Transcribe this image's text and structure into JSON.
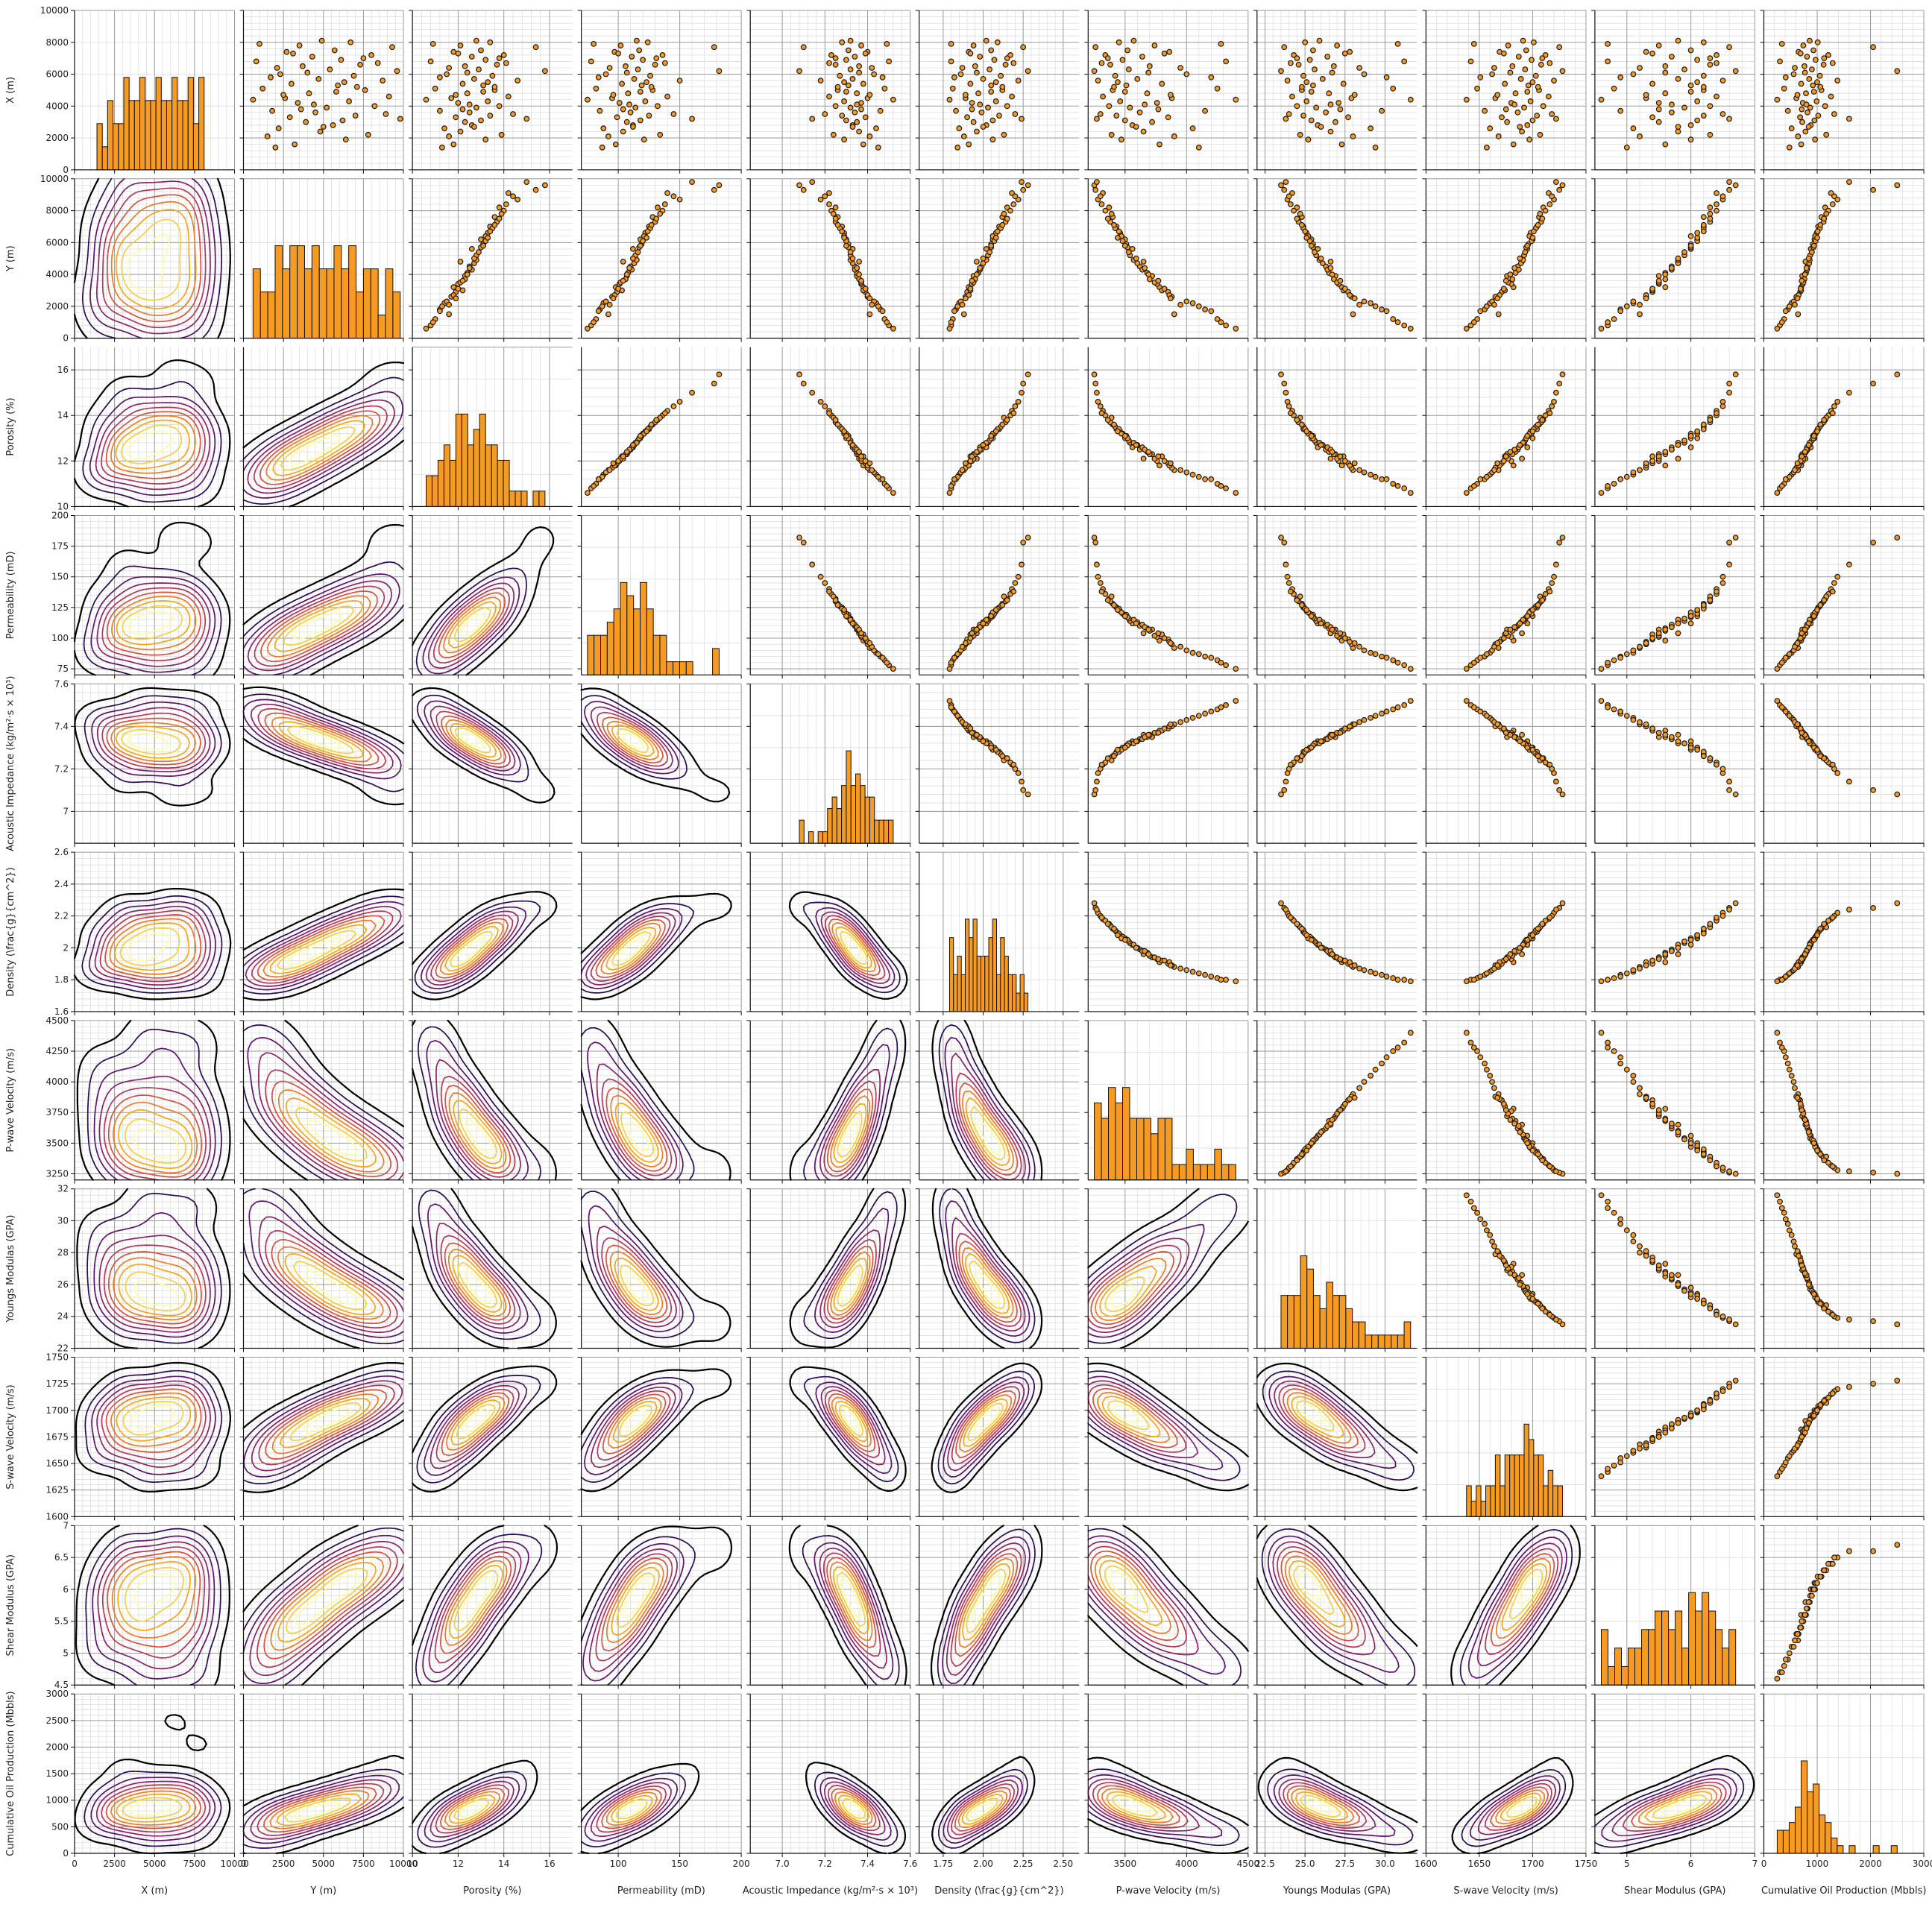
{
  "colors": {
    "histogram": "#f59a23",
    "scatter_fill": "#f59a23",
    "marker_edge": "#1a1a1a",
    "kde_colormap": [
      "#000004",
      "#2a0a55",
      "#5c126e",
      "#8a226a",
      "#b5365b",
      "#d8513f",
      "#ef7a24",
      "#f9a50f",
      "#f7d03c",
      "#fcffa4"
    ],
    "grid_major": "#9a9a9a",
    "grid_minor": "#dedede"
  },
  "chart_data": {
    "type": "pairplot",
    "lower_triangle": "kde-contour",
    "diagonal": "histogram",
    "upper_triangle": "scatter",
    "grid": true,
    "minor_grid": true,
    "variables": [
      {
        "key": "x",
        "label": "X (m)",
        "lim": [
          0,
          10000
        ],
        "ticks": [
          0,
          2000,
          4000,
          6000,
          8000,
          10000
        ],
        "xticks": [
          0,
          2500,
          5000,
          7500,
          10000
        ],
        "xtick_labels": [
          "0",
          "2500",
          "5000",
          "7500",
          "10000"
        ]
      },
      {
        "key": "y",
        "label": "Y (m)",
        "lim": [
          0,
          10000
        ],
        "ticks": [
          0,
          2000,
          4000,
          6000,
          8000,
          10000
        ],
        "xticks": [
          0,
          2500,
          5000,
          7500,
          10000
        ],
        "xtick_labels": [
          "0",
          "2500",
          "5000",
          "7500",
          "10000"
        ]
      },
      {
        "key": "por",
        "label": "Porosity (%)",
        "lim": [
          10,
          17
        ],
        "ticks": [
          10,
          12,
          14,
          16
        ],
        "xticks": [
          10,
          12,
          14,
          16
        ],
        "xtick_labels": [
          "10",
          "12",
          "14",
          "16"
        ]
      },
      {
        "key": "perm",
        "label": "Permeability (mD)",
        "lim": [
          70,
          200
        ],
        "ticks": [
          75,
          100,
          125,
          150,
          175,
          200
        ],
        "xticks": [
          100,
          150,
          200
        ],
        "xtick_labels": [
          "100",
          "150",
          "200"
        ]
      },
      {
        "key": "ai",
        "label": "Acoustic Impedance (kg/m²·s × 10³)",
        "lim": [
          6.85,
          7.6
        ],
        "ticks": [
          7.0,
          7.2,
          7.4,
          7.6
        ],
        "xticks": [
          7.0,
          7.2,
          7.4,
          7.6
        ],
        "xtick_labels": [
          "7.0",
          "7.2",
          "7.4",
          "7.6"
        ]
      },
      {
        "key": "den",
        "label": "Density (\\frac{g}{cm^2})",
        "lim": [
          1.6,
          2.6
        ],
        "ticks": [
          1.6,
          1.8,
          2.0,
          2.2,
          2.4,
          2.6
        ],
        "xticks": [
          1.75,
          2.0,
          2.25,
          2.5
        ],
        "xtick_labels": [
          "1.75",
          "2.00",
          "2.25",
          "2.50"
        ]
      },
      {
        "key": "pv",
        "label": "P-wave Velocity (m/s)",
        "lim": [
          3200,
          4500
        ],
        "ticks": [
          3250,
          3500,
          3750,
          4000,
          4250,
          4500
        ],
        "xticks": [
          3500,
          4000,
          4500
        ],
        "xtick_labels": [
          "3500",
          "4000",
          "4500"
        ]
      },
      {
        "key": "ym",
        "label": "Youngs Modulas (GPA)",
        "lim": [
          22,
          32
        ],
        "ticks": [
          22,
          24,
          26,
          28,
          30,
          32
        ],
        "xticks": [
          22.5,
          25.0,
          27.5,
          30.0
        ],
        "xtick_labels": [
          "22.5",
          "25.0",
          "27.5",
          "30.0"
        ]
      },
      {
        "key": "sv",
        "label": "S-wave Velocity (m/s)",
        "lim": [
          1600,
          1750
        ],
        "ticks": [
          1600,
          1625,
          1650,
          1675,
          1700,
          1725,
          1750
        ],
        "xticks": [
          1600,
          1650,
          1700,
          1750
        ],
        "xtick_labels": [
          "1600",
          "1650",
          "1700",
          "1750"
        ]
      },
      {
        "key": "sm",
        "label": "Shear Modulus (GPA)",
        "lim": [
          4.5,
          7.0
        ],
        "ticks": [
          4.5,
          5.0,
          5.5,
          6.0,
          6.5,
          7.0
        ],
        "xticks": [
          5,
          6,
          7
        ],
        "xtick_labels": [
          "5",
          "6",
          "7"
        ]
      },
      {
        "key": "prod",
        "label": "Cumulative Oil Production (Mbbls)",
        "lim": [
          0,
          3000
        ],
        "ticks": [
          0,
          500,
          1000,
          1500,
          2000,
          2500,
          3000
        ],
        "xticks": [
          0,
          1000,
          2000,
          3000
        ],
        "xtick_labels": [
          "0",
          "1000",
          "2000",
          "3000"
        ]
      }
    ],
    "rows": [
      {
        "x": 1600,
        "y": 3200,
        "por": 11.8,
        "perm": 98,
        "ai": 7.38,
        "den": 1.91,
        "pv": 3780,
        "ym": 27.3,
        "sv": 1682,
        "sm": 5.6,
        "prod": 700
      },
      {
        "x": 2100,
        "y": 1500,
        "por": 11.6,
        "perm": 92,
        "ai": 7.41,
        "den": 1.88,
        "pv": 3900,
        "ym": 28.0,
        "sv": 1668,
        "sm": 5.2,
        "prod": 640
      },
      {
        "x": 2400,
        "y": 4800,
        "por": 12.1,
        "perm": 104,
        "ai": 7.36,
        "den": 1.96,
        "pv": 3650,
        "ym": 26.6,
        "sv": 1690,
        "sm": 5.8,
        "prod": 780
      },
      {
        "x": 2600,
        "y": 2200,
        "por": 11.4,
        "perm": 88,
        "ai": 7.44,
        "den": 1.85,
        "pv": 4050,
        "ym": 29.1,
        "sv": 1660,
        "sm": 5.1,
        "prod": 520
      },
      {
        "x": 2800,
        "y": 5600,
        "por": 12.6,
        "perm": 112,
        "ai": 7.33,
        "den": 2.02,
        "pv": 3560,
        "ym": 25.8,
        "sv": 1695,
        "sm": 6.0,
        "prod": 880
      },
      {
        "x": 3000,
        "y": 3900,
        "por": 12.3,
        "perm": 107,
        "ai": 7.35,
        "den": 1.94,
        "pv": 3720,
        "ym": 26.9,
        "sv": 1676,
        "sm": 5.5,
        "prod": 720
      },
      {
        "x": 3100,
        "y": 6200,
        "por": 13.0,
        "perm": 118,
        "ai": 7.3,
        "den": 2.06,
        "pv": 3500,
        "ym": 25.4,
        "sv": 1700,
        "sm": 6.1,
        "prod": 950
      },
      {
        "x": 3300,
        "y": 2900,
        "por": 11.9,
        "perm": 99,
        "ai": 7.39,
        "den": 1.9,
        "pv": 3850,
        "ym": 27.7,
        "sv": 1671,
        "sm": 5.4,
        "prod": 680
      },
      {
        "x": 3400,
        "y": 7000,
        "por": 13.4,
        "perm": 125,
        "ai": 7.28,
        "den": 2.1,
        "pv": 3430,
        "ym": 24.9,
        "sv": 1704,
        "sm": 6.2,
        "prod": 1020
      },
      {
        "x": 3600,
        "y": 4500,
        "por": 12.5,
        "perm": 110,
        "ai": 7.34,
        "den": 1.99,
        "pv": 3620,
        "ym": 26.3,
        "sv": 1686,
        "sm": 5.7,
        "prod": 820
      },
      {
        "x": 3700,
        "y": 1800,
        "por": 11.2,
        "perm": 85,
        "ai": 7.46,
        "den": 1.83,
        "pv": 4150,
        "ym": 29.8,
        "sv": 1655,
        "sm": 4.9,
        "prod": 450
      },
      {
        "x": 3900,
        "y": 5200,
        "por": 12.8,
        "perm": 114,
        "ai": 7.32,
        "den": 2.03,
        "pv": 3540,
        "ym": 25.7,
        "sv": 1692,
        "sm": 5.9,
        "prod": 870
      },
      {
        "x": 4000,
        "y": 8200,
        "por": 13.8,
        "perm": 132,
        "ai": 7.25,
        "den": 2.15,
        "pv": 3370,
        "ym": 24.5,
        "sv": 1710,
        "sm": 6.3,
        "prod": 1150
      },
      {
        "x": 4200,
        "y": 3400,
        "por": 12.0,
        "perm": 101,
        "ai": 7.37,
        "den": 1.93,
        "pv": 3760,
        "ym": 27.1,
        "sv": 1680,
        "sm": 5.5,
        "prod": 730
      },
      {
        "x": 4300,
        "y": 6600,
        "por": 13.3,
        "perm": 122,
        "ai": 7.29,
        "den": 2.08,
        "pv": 3460,
        "ym": 25.1,
        "sv": 1698,
        "sm": 6.1,
        "prod": 990
      },
      {
        "x": 4500,
        "y": 2600,
        "por": 11.7,
        "perm": 95,
        "ai": 7.4,
        "den": 1.89,
        "pv": 3880,
        "ym": 27.9,
        "sv": 1665,
        "sm": 5.3,
        "prod": 610
      },
      {
        "x": 4600,
        "y": 9100,
        "por": 14.2,
        "perm": 140,
        "ai": 7.22,
        "den": 2.18,
        "pv": 3320,
        "ym": 24.2,
        "sv": 1715,
        "sm": 6.4,
        "prod": 1260
      },
      {
        "x": 4800,
        "y": 4100,
        "por": 12.4,
        "perm": 108,
        "ai": 7.35,
        "den": 1.97,
        "pv": 3680,
        "ym": 26.5,
        "sv": 1684,
        "sm": 5.6,
        "prod": 790
      },
      {
        "x": 5000,
        "y": 7600,
        "por": 13.6,
        "perm": 128,
        "ai": 7.26,
        "den": 2.12,
        "pv": 3400,
        "ym": 24.8,
        "sv": 1706,
        "sm": 6.2,
        "prod": 1080
      },
      {
        "x": 5100,
        "y": 1200,
        "por": 11.0,
        "perm": 82,
        "ai": 7.48,
        "den": 1.81,
        "pv": 4250,
        "ym": 30.5,
        "sv": 1648,
        "sm": 4.8,
        "prod": 380
      },
      {
        "x": 5300,
        "y": 5900,
        "por": 13.1,
        "perm": 119,
        "ai": 7.31,
        "den": 2.05,
        "pv": 3510,
        "ym": 25.5,
        "sv": 1696,
        "sm": 6.0,
        "prod": 920
      },
      {
        "x": 5400,
        "y": 3000,
        "por": 12.2,
        "perm": 103,
        "ai": 7.38,
        "den": 1.92,
        "pv": 3800,
        "ym": 27.4,
        "sv": 1674,
        "sm": 5.4,
        "prod": 700
      },
      {
        "x": 5600,
        "y": 8700,
        "por": 14.6,
        "perm": 150,
        "ai": 7.18,
        "den": 2.22,
        "pv": 3280,
        "ym": 23.9,
        "sv": 1720,
        "sm": 6.5,
        "prod": 1380
      },
      {
        "x": 5700,
        "y": 4700,
        "por": 12.7,
        "perm": 113,
        "ai": 7.33,
        "den": 2.0,
        "pv": 3600,
        "ym": 26.1,
        "sv": 1689,
        "sm": 5.8,
        "prod": 850
      },
      {
        "x": 5900,
        "y": 6900,
        "por": 13.5,
        "perm": 126,
        "ai": 7.27,
        "den": 2.11,
        "pv": 3420,
        "ym": 24.9,
        "sv": 1703,
        "sm": 6.2,
        "prod": 1050
      },
      {
        "x": 6000,
        "y": 2300,
        "por": 11.5,
        "perm": 90,
        "ai": 7.43,
        "den": 1.86,
        "pv": 4000,
        "ym": 28.7,
        "sv": 1662,
        "sm": 5.1,
        "prod": 560
      },
      {
        "x": 6200,
        "y": 9600,
        "por": 15.8,
        "perm": 182,
        "ai": 7.08,
        "den": 2.28,
        "pv": 3250,
        "ym": 23.5,
        "sv": 1728,
        "sm": 6.7,
        "prod": 2500
      },
      {
        "x": 6300,
        "y": 5400,
        "por": 12.9,
        "perm": 116,
        "ai": 7.32,
        "den": 2.04,
        "pv": 3530,
        "ym": 25.6,
        "sv": 1693,
        "sm": 5.9,
        "prod": 900
      },
      {
        "x": 6500,
        "y": 3700,
        "por": 12.3,
        "perm": 106,
        "ai": 7.36,
        "den": 1.95,
        "pv": 3700,
        "ym": 26.8,
        "sv": 1681,
        "sm": 5.6,
        "prod": 760
      },
      {
        "x": 6600,
        "y": 7300,
        "por": 13.7,
        "perm": 130,
        "ai": 7.25,
        "den": 2.14,
        "pv": 3380,
        "ym": 24.6,
        "sv": 1708,
        "sm": 6.3,
        "prod": 1120
      },
      {
        "x": 6800,
        "y": 800,
        "por": 10.8,
        "perm": 78,
        "ai": 7.5,
        "den": 1.8,
        "pv": 4320,
        "ym": 31.2,
        "sv": 1642,
        "sm": 4.7,
        "prod": 300
      },
      {
        "x": 6900,
        "y": 6100,
        "por": 13.2,
        "perm": 120,
        "ai": 7.3,
        "den": 2.07,
        "pv": 3480,
        "ym": 25.3,
        "sv": 1699,
        "sm": 6.1,
        "prod": 970
      },
      {
        "x": 7100,
        "y": 4300,
        "por": 12.6,
        "perm": 111,
        "ai": 7.34,
        "den": 1.98,
        "pv": 3640,
        "ym": 26.4,
        "sv": 1687,
        "sm": 5.7,
        "prod": 810
      },
      {
        "x": 7200,
        "y": 8000,
        "por": 14.0,
        "perm": 136,
        "ai": 7.23,
        "den": 2.17,
        "pv": 3340,
        "ym": 24.3,
        "sv": 1712,
        "sm": 6.4,
        "prod": 1210
      },
      {
        "x": 7400,
        "y": 2700,
        "por": 11.8,
        "perm": 97,
        "ai": 7.4,
        "den": 1.91,
        "pv": 3860,
        "ym": 27.8,
        "sv": 1669,
        "sm": 5.3,
        "prod": 650
      },
      {
        "x": 7500,
        "y": 5700,
        "por": 13.0,
        "perm": 117,
        "ai": 7.31,
        "den": 2.05,
        "pv": 3520,
        "ym": 25.5,
        "sv": 1694,
        "sm": 6.0,
        "prod": 930
      },
      {
        "x": 7700,
        "y": 9300,
        "por": 15.4,
        "perm": 178,
        "ai": 7.1,
        "den": 2.25,
        "pv": 3260,
        "ym": 23.7,
        "sv": 1725,
        "sm": 6.6,
        "prod": 2050
      },
      {
        "x": 7800,
        "y": 3500,
        "por": 12.1,
        "perm": 102,
        "ai": 7.37,
        "den": 1.94,
        "pv": 3740,
        "ym": 27.0,
        "sv": 1677,
        "sm": 5.5,
        "prod": 740
      },
      {
        "x": 8000,
        "y": 6700,
        "por": 13.4,
        "perm": 124,
        "ai": 7.28,
        "den": 2.09,
        "pv": 3450,
        "ym": 25.0,
        "sv": 1701,
        "sm": 6.2,
        "prod": 1010
      },
      {
        "x": 8100,
        "y": 4900,
        "por": 12.8,
        "perm": 115,
        "ai": 7.32,
        "den": 2.02,
        "pv": 3570,
        "ym": 25.9,
        "sv": 1691,
        "sm": 5.8,
        "prod": 860
      },
      {
        "x": 2200,
        "y": 7800,
        "por": 13.9,
        "perm": 134,
        "ai": 7.24,
        "den": 2.13,
        "pv": 3390,
        "ym": 24.7,
        "sv": 1707,
        "sm": 6.3,
        "prod": 1170
      },
      {
        "x": 1900,
        "y": 6400,
        "por": 13.2,
        "perm": 121,
        "ai": 7.29,
        "den": 2.06,
        "pv": 3470,
        "ym": 25.2,
        "sv": 1697,
        "sm": 6.0,
        "prod": 960
      },
      {
        "x": 1400,
        "y": 2000,
        "por": 11.3,
        "perm": 87,
        "ai": 7.45,
        "den": 1.84,
        "pv": 4100,
        "ym": 29.4,
        "sv": 1657,
        "sm": 5.0,
        "prod": 480
      },
      {
        "x": 3500,
        "y": 8900,
        "por": 14.4,
        "perm": 145,
        "ai": 7.2,
        "den": 2.2,
        "pv": 3300,
        "ym": 24.0,
        "sv": 1718,
        "sm": 6.5,
        "prod": 1320
      },
      {
        "x": 4400,
        "y": 600,
        "por": 10.6,
        "perm": 75,
        "ai": 7.52,
        "den": 1.79,
        "pv": 4400,
        "ym": 31.6,
        "sv": 1638,
        "sm": 4.6,
        "prod": 250
      },
      {
        "x": 5200,
        "y": 7100,
        "por": 13.6,
        "perm": 127,
        "ai": 7.26,
        "den": 2.12,
        "pv": 3410,
        "ym": 24.8,
        "sv": 1705,
        "sm": 6.2,
        "prod": 1060
      },
      {
        "x": 5800,
        "y": 1700,
        "por": 11.2,
        "perm": 84,
        "ai": 7.47,
        "den": 1.82,
        "pv": 4200,
        "ym": 30.1,
        "sv": 1651,
        "sm": 4.9,
        "prod": 410
      },
      {
        "x": 6700,
        "y": 8400,
        "por": 14.1,
        "perm": 138,
        "ai": 7.22,
        "den": 2.19,
        "pv": 3310,
        "ym": 24.1,
        "sv": 1716,
        "sm": 6.4,
        "prod": 1290
      },
      {
        "x": 7300,
        "y": 3100,
        "por": 12.0,
        "perm": 100,
        "ai": 7.39,
        "den": 1.92,
        "pv": 3820,
        "ym": 27.5,
        "sv": 1673,
        "sm": 5.4,
        "prod": 690
      },
      {
        "x": 7900,
        "y": 1000,
        "por": 10.9,
        "perm": 80,
        "ai": 7.49,
        "den": 1.8,
        "pv": 4280,
        "ym": 30.8,
        "sv": 1645,
        "sm": 4.7,
        "prod": 340
      },
      {
        "x": 2700,
        "y": 5000,
        "por": 12.7,
        "perm": 112,
        "ai": 7.33,
        "den": 2.0,
        "pv": 3590,
        "ym": 26.0,
        "sv": 1688,
        "sm": 5.8,
        "prod": 840
      },
      {
        "x": 3200,
        "y": 9800,
        "por": 15.0,
        "perm": 160,
        "ai": 7.14,
        "den": 2.24,
        "pv": 3270,
        "ym": 23.8,
        "sv": 1722,
        "sm": 6.6,
        "prod": 1600
      },
      {
        "x": 4100,
        "y": 4400,
        "por": 12.5,
        "perm": 109,
        "ai": 7.35,
        "den": 1.98,
        "pv": 3660,
        "ym": 26.6,
        "sv": 1683,
        "sm": 5.7,
        "prod": 800
      },
      {
        "x": 4900,
        "y": 5800,
        "por": 13.1,
        "perm": 118,
        "ai": 7.3,
        "den": 2.05,
        "pv": 3500,
        "ym": 25.4,
        "sv": 1695,
        "sm": 6.0,
        "prod": 940
      },
      {
        "x": 6100,
        "y": 4000,
        "por": 12.4,
        "perm": 107,
        "ai": 7.36,
        "den": 1.96,
        "pv": 3690,
        "ym": 26.7,
        "sv": 1679,
        "sm": 5.6,
        "prod": 770
      },
      {
        "x": 6400,
        "y": 2100,
        "por": 11.6,
        "perm": 93,
        "ai": 7.42,
        "den": 1.87,
        "pv": 3950,
        "ym": 28.4,
        "sv": 1664,
        "sm": 5.2,
        "prod": 580
      },
      {
        "x": 7000,
        "y": 7500,
        "por": 13.8,
        "perm": 131,
        "ai": 7.25,
        "den": 2.15,
        "pv": 3360,
        "ym": 24.5,
        "sv": 1709,
        "sm": 6.3,
        "prod": 1130
      },
      {
        "x": 5500,
        "y": 6300,
        "por": 13.3,
        "perm": 123,
        "ai": 7.29,
        "den": 2.08,
        "pv": 3440,
        "ym": 25.1,
        "sv": 1700,
        "sm": 6.1,
        "prod": 1000
      },
      {
        "x": 3800,
        "y": 3600,
        "por": 12.2,
        "perm": 104,
        "ai": 7.37,
        "den": 1.93,
        "pv": 3770,
        "ym": 27.2,
        "sv": 1675,
        "sm": 5.5,
        "prod": 710
      },
      {
        "x": 4700,
        "y": 2500,
        "por": 11.9,
        "perm": 96,
        "ai": 7.41,
        "den": 1.89,
        "pv": 3870,
        "ym": 28.1,
        "sv": 1667,
        "sm": 5.3,
        "prod": 630
      }
    ]
  }
}
